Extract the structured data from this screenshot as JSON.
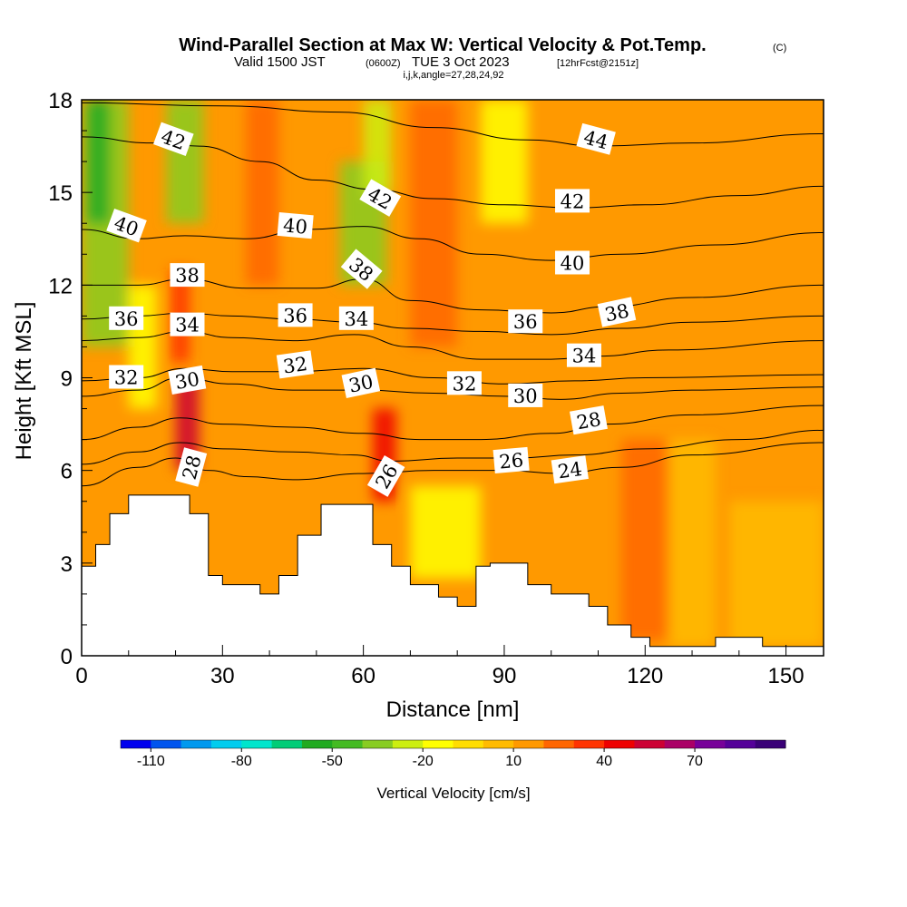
{
  "header": {
    "title": "Wind-Parallel Section at Max W: Vertical Velocity & Pot.Temp.",
    "copyright": "(C)",
    "valid_main": "Valid 1500 JST",
    "valid_z": "(0600Z)",
    "valid_date": "TUE 3 Oct 2023",
    "forecast": "[12hrFcst@2151z]",
    "indices": "i,j,k,angle=27,28,24,92"
  },
  "chart_data": {
    "type": "heatmap",
    "title": "Wind-Parallel Section at Max W: Vertical Velocity & Pot.Temp.",
    "xlabel": "Distance [nm]",
    "ylabel": "Height [Kft MSL]",
    "xlim": [
      0,
      158
    ],
    "ylim": [
      0,
      18
    ],
    "x_ticks": [
      0,
      30,
      60,
      90,
      120,
      150
    ],
    "y_ticks": [
      0,
      3,
      6,
      9,
      12,
      15,
      18
    ],
    "colorbar": {
      "title": "Vertical Velocity [cm/s]",
      "labels": [
        "-110",
        "-80",
        "-50",
        "-20",
        "10",
        "40",
        "70"
      ],
      "label_values": [
        -110,
        -80,
        -50,
        -20,
        10,
        40,
        70
      ],
      "min": -120,
      "max": 100,
      "step": 10,
      "colors": [
        "#0000ee",
        "#0055ee",
        "#0099ee",
        "#00ccee",
        "#00e5cc",
        "#00cc77",
        "#20aa20",
        "#44bb22",
        "#88cc22",
        "#ccee11",
        "#ffff00",
        "#ffdd00",
        "#ffbb00",
        "#ff9900",
        "#ff6600",
        "#ff3300",
        "#ee0000",
        "#cc0033",
        "#aa0066",
        "#770099",
        "#550099",
        "#3a0077"
      ]
    },
    "terrain": [
      [
        0,
        2.9
      ],
      [
        1,
        2.9
      ],
      [
        3,
        3.6
      ],
      [
        6,
        4.6
      ],
      [
        10,
        5.2
      ],
      [
        20,
        5.2
      ],
      [
        23,
        4.6
      ],
      [
        27,
        2.6
      ],
      [
        30,
        2.3
      ],
      [
        38,
        2.0
      ],
      [
        42,
        2.6
      ],
      [
        46,
        3.9
      ],
      [
        51,
        4.9
      ],
      [
        57,
        4.9
      ],
      [
        62,
        3.6
      ],
      [
        66,
        2.9
      ],
      [
        70,
        2.3
      ],
      [
        76,
        1.9
      ],
      [
        80,
        1.6
      ],
      [
        84,
        2.9
      ],
      [
        87,
        3.0
      ],
      [
        95,
        2.3
      ],
      [
        100,
        2.0
      ],
      [
        108,
        1.6
      ],
      [
        112,
        1.0
      ],
      [
        117,
        0.6
      ],
      [
        121,
        0.3
      ],
      [
        134,
        0.3
      ],
      [
        135,
        0.6
      ],
      [
        143,
        0.6
      ],
      [
        145,
        0.3
      ],
      [
        158,
        0.3
      ]
    ],
    "theta_contours": [
      {
        "value": 24,
        "points": [
          [
            0,
            5.5
          ],
          [
            12,
            6.1
          ],
          [
            20,
            6.4
          ],
          [
            27,
            6.0
          ],
          [
            35,
            5.8
          ],
          [
            45,
            5.7
          ],
          [
            60,
            5.9
          ],
          [
            75,
            6.0
          ],
          [
            90,
            6.0
          ],
          [
            102,
            5.9
          ],
          [
            115,
            6.1
          ],
          [
            130,
            6.5
          ],
          [
            158,
            6.9
          ]
        ]
      },
      {
        "value": 26,
        "points": [
          [
            0,
            6.2
          ],
          [
            12,
            6.6
          ],
          [
            21,
            6.9
          ],
          [
            30,
            6.7
          ],
          [
            45,
            6.6
          ],
          [
            58,
            6.5
          ],
          [
            66,
            6.3
          ],
          [
            80,
            6.4
          ],
          [
            92,
            6.4
          ],
          [
            105,
            6.5
          ],
          [
            120,
            6.7
          ],
          [
            140,
            7.0
          ],
          [
            158,
            7.3
          ]
        ]
      },
      {
        "value": 28,
        "points": [
          [
            0,
            7.0
          ],
          [
            12,
            7.4
          ],
          [
            21,
            7.7
          ],
          [
            30,
            7.5
          ],
          [
            45,
            7.4
          ],
          [
            60,
            7.2
          ],
          [
            72,
            7.0
          ],
          [
            85,
            7.0
          ],
          [
            100,
            7.2
          ],
          [
            112,
            7.5
          ],
          [
            130,
            7.8
          ],
          [
            158,
            8.1
          ]
        ]
      },
      {
        "value": 30,
        "points": [
          [
            0,
            8.4
          ],
          [
            12,
            8.6
          ],
          [
            21,
            9.0
          ],
          [
            32,
            8.8
          ],
          [
            45,
            8.6
          ],
          [
            60,
            8.6
          ],
          [
            75,
            8.5
          ],
          [
            90,
            8.4
          ],
          [
            102,
            8.3
          ],
          [
            115,
            8.5
          ],
          [
            130,
            8.6
          ],
          [
            158,
            8.7
          ]
        ]
      },
      {
        "value": 32,
        "points": [
          [
            0,
            8.9
          ],
          [
            12,
            9.0
          ],
          [
            22,
            9.3
          ],
          [
            32,
            9.2
          ],
          [
            45,
            9.2
          ],
          [
            60,
            9.3
          ],
          [
            75,
            9.0
          ],
          [
            90,
            8.8
          ],
          [
            105,
            8.9
          ],
          [
            120,
            9.0
          ],
          [
            158,
            9.1
          ]
        ]
      },
      {
        "value": 34,
        "points": [
          [
            0,
            10.2
          ],
          [
            12,
            10.3
          ],
          [
            22,
            10.5
          ],
          [
            32,
            10.3
          ],
          [
            45,
            10.2
          ],
          [
            58,
            10.4
          ],
          [
            70,
            10.0
          ],
          [
            85,
            9.6
          ],
          [
            100,
            9.6
          ],
          [
            110,
            9.7
          ],
          [
            125,
            9.9
          ],
          [
            158,
            10.2
          ]
        ]
      },
      {
        "value": 36,
        "points": [
          [
            0,
            10.9
          ],
          [
            12,
            11.0
          ],
          [
            22,
            11.1
          ],
          [
            32,
            11.0
          ],
          [
            45,
            10.9
          ],
          [
            58,
            10.8
          ],
          [
            70,
            10.6
          ],
          [
            85,
            10.5
          ],
          [
            100,
            10.4
          ],
          [
            115,
            10.6
          ],
          [
            130,
            10.8
          ],
          [
            158,
            11.0
          ]
        ]
      },
      {
        "value": 38,
        "points": [
          [
            0,
            12.0
          ],
          [
            12,
            12.0
          ],
          [
            22,
            12.2
          ],
          [
            35,
            11.9
          ],
          [
            50,
            11.9
          ],
          [
            60,
            12.2
          ],
          [
            70,
            11.5
          ],
          [
            85,
            11.2
          ],
          [
            100,
            11.1
          ],
          [
            112,
            11.3
          ],
          [
            130,
            11.6
          ],
          [
            158,
            12.0
          ]
        ]
      },
      {
        "value": 40,
        "points": [
          [
            0,
            13.8
          ],
          [
            12,
            13.5
          ],
          [
            22,
            13.6
          ],
          [
            35,
            13.5
          ],
          [
            48,
            13.8
          ],
          [
            60,
            13.9
          ],
          [
            72,
            13.5
          ],
          [
            85,
            13.0
          ],
          [
            100,
            12.8
          ],
          [
            115,
            13.0
          ],
          [
            135,
            13.3
          ],
          [
            158,
            13.7
          ]
        ]
      },
      {
        "value": 42,
        "points": [
          [
            0,
            16.8
          ],
          [
            15,
            16.6
          ],
          [
            25,
            16.5
          ],
          [
            38,
            16.0
          ],
          [
            50,
            15.4
          ],
          [
            62,
            15.1
          ],
          [
            75,
            14.8
          ],
          [
            90,
            14.6
          ],
          [
            105,
            14.5
          ],
          [
            120,
            14.6
          ],
          [
            140,
            14.9
          ],
          [
            158,
            15.2
          ]
        ]
      },
      {
        "value": 44,
        "points": [
          [
            0,
            17.9
          ],
          [
            30,
            17.8
          ],
          [
            55,
            17.6
          ],
          [
            75,
            17.1
          ],
          [
            95,
            16.7
          ],
          [
            110,
            16.5
          ],
          [
            130,
            16.6
          ],
          [
            158,
            16.9
          ]
        ]
      }
    ],
    "contour_labels": [
      {
        "text": "42",
        "x": 19.5,
        "y": 16.7,
        "angle": 20
      },
      {
        "text": "40",
        "x": 9.5,
        "y": 13.9,
        "angle": 20
      },
      {
        "text": "38",
        "x": 22.5,
        "y": 12.3,
        "angle": 0
      },
      {
        "text": "36",
        "x": 9.5,
        "y": 10.9,
        "angle": 0
      },
      {
        "text": "34",
        "x": 22.5,
        "y": 10.7,
        "angle": 0
      },
      {
        "text": "32",
        "x": 9.5,
        "y": 9.0,
        "angle": 0
      },
      {
        "text": "30",
        "x": 22.5,
        "y": 8.9,
        "angle": -10
      },
      {
        "text": "28",
        "x": 23.5,
        "y": 6.1,
        "angle": -75
      },
      {
        "text": "40",
        "x": 45.5,
        "y": 13.9,
        "angle": 5
      },
      {
        "text": "36",
        "x": 45.5,
        "y": 11.0,
        "angle": 0
      },
      {
        "text": "32",
        "x": 45.5,
        "y": 9.4,
        "angle": -8
      },
      {
        "text": "42",
        "x": 63.5,
        "y": 14.8,
        "angle": 30
      },
      {
        "text": "38",
        "x": 59.5,
        "y": 12.5,
        "angle": 40
      },
      {
        "text": "34",
        "x": 58.5,
        "y": 10.9,
        "angle": 0
      },
      {
        "text": "30",
        "x": 59.5,
        "y": 8.8,
        "angle": -12
      },
      {
        "text": "26",
        "x": 65.0,
        "y": 5.8,
        "angle": -60
      },
      {
        "text": "32",
        "x": 81.5,
        "y": 8.8,
        "angle": 0
      },
      {
        "text": "26",
        "x": 91.5,
        "y": 6.3,
        "angle": -5
      },
      {
        "text": "44",
        "x": 109.5,
        "y": 16.7,
        "angle": 15
      },
      {
        "text": "42",
        "x": 104.5,
        "y": 14.7,
        "angle": 0
      },
      {
        "text": "40",
        "x": 104.5,
        "y": 12.7,
        "angle": 0
      },
      {
        "text": "38",
        "x": 114.0,
        "y": 11.1,
        "angle": -12
      },
      {
        "text": "36",
        "x": 94.5,
        "y": 10.8,
        "angle": 0
      },
      {
        "text": "34",
        "x": 107.0,
        "y": 9.7,
        "angle": 0
      },
      {
        "text": "30",
        "x": 94.5,
        "y": 8.4,
        "angle": 0
      },
      {
        "text": "28",
        "x": 108.0,
        "y": 7.6,
        "angle": -10
      },
      {
        "text": "24",
        "x": 104.0,
        "y": 6.0,
        "angle": -8
      }
    ],
    "velocity_field": {
      "background": 10,
      "features": [
        {
          "type": "band",
          "x": [
            0,
            10
          ],
          "y": [
            10,
            18
          ],
          "value": -40
        },
        {
          "type": "band",
          "x": [
            1,
            6
          ],
          "y": [
            14,
            18
          ],
          "value": -60
        },
        {
          "type": "band",
          "x": [
            18,
            26
          ],
          "y": [
            14,
            18
          ],
          "value": -40
        },
        {
          "type": "band",
          "x": [
            10,
            16
          ],
          "y": [
            8,
            12
          ],
          "value": -20
        },
        {
          "type": "band",
          "x": [
            20,
            25
          ],
          "y": [
            6,
            9
          ],
          "value": 50
        },
        {
          "type": "band",
          "x": [
            19,
            23
          ],
          "y": [
            9.5,
            12.5
          ],
          "value": 30
        },
        {
          "type": "band",
          "x": [
            35,
            42
          ],
          "y": [
            12,
            18
          ],
          "value": 20
        },
        {
          "type": "band",
          "x": [
            55,
            65
          ],
          "y": [
            12,
            16
          ],
          "value": -40
        },
        {
          "type": "band",
          "x": [
            60,
            66
          ],
          "y": [
            15,
            18
          ],
          "value": -30
        },
        {
          "type": "band",
          "x": [
            62,
            67
          ],
          "y": [
            5,
            8
          ],
          "value": 40
        },
        {
          "type": "band",
          "x": [
            70,
            80
          ],
          "y": [
            10,
            18
          ],
          "value": 20
        },
        {
          "type": "band",
          "x": [
            85,
            95
          ],
          "y": [
            14,
            18
          ],
          "value": -20
        },
        {
          "type": "band",
          "x": [
            70,
            85
          ],
          "y": [
            2.5,
            5.5
          ],
          "value": -20
        },
        {
          "type": "band",
          "x": [
            125,
            135
          ],
          "y": [
            0.3,
            7
          ],
          "value": 0
        },
        {
          "type": "band",
          "x": [
            138,
            158
          ],
          "y": [
            0.3,
            5
          ],
          "value": 0
        },
        {
          "type": "band",
          "x": [
            115,
            125
          ],
          "y": [
            0.5,
            7
          ],
          "value": 20
        }
      ]
    }
  }
}
